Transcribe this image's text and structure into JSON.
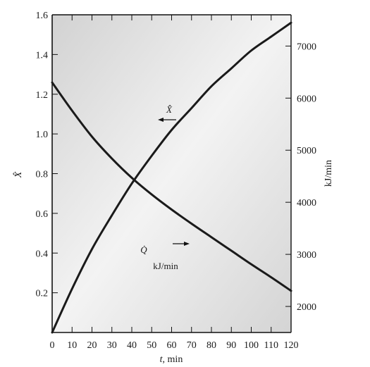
{
  "chart_data": {
    "type": "line",
    "title": "",
    "xlabel_var": "t",
    "xlabel_unit": ", min",
    "ylabel_left": "X̂",
    "ylabel_right": "kJ/min",
    "xlim": [
      0,
      120
    ],
    "ylim_left": [
      0,
      1.6
    ],
    "ylim_right": [
      1500,
      7600
    ],
    "x_ticks": [
      0,
      10,
      20,
      30,
      40,
      50,
      60,
      70,
      80,
      90,
      100,
      110,
      120
    ],
    "y_left_ticks": [
      0.2,
      0.4,
      0.6,
      0.8,
      1.0,
      1.2,
      1.4,
      1.6
    ],
    "y_left_tick_labels": [
      "0.2",
      "0.4",
      "0.6",
      "0.8",
      "1.0",
      "1.2",
      "1.4",
      "1.6"
    ],
    "y_right_ticks": [
      2000,
      3000,
      4000,
      5000,
      6000,
      7000
    ],
    "grid": false,
    "series": [
      {
        "name": "X̂",
        "axis": "left",
        "x": [
          0,
          10,
          20,
          30,
          40,
          50,
          60,
          70,
          80,
          90,
          100,
          110,
          120
        ],
        "values": [
          0.0,
          0.22,
          0.42,
          0.59,
          0.75,
          0.89,
          1.02,
          1.13,
          1.24,
          1.33,
          1.42,
          1.49,
          1.56
        ]
      },
      {
        "name": "Q̇",
        "axis": "right",
        "x": [
          0,
          10,
          20,
          30,
          40,
          50,
          60,
          70,
          80,
          90,
          100,
          110,
          120
        ],
        "values": [
          6300,
          5760,
          5260,
          4840,
          4470,
          4150,
          3860,
          3590,
          3330,
          3070,
          2810,
          2560,
          2300
        ]
      }
    ],
    "annotations": [
      {
        "text": "X̂",
        "points_to": "left axis"
      },
      {
        "text": "Q̇",
        "points_to": "right axis"
      },
      {
        "text": "kJ/min"
      }
    ]
  }
}
